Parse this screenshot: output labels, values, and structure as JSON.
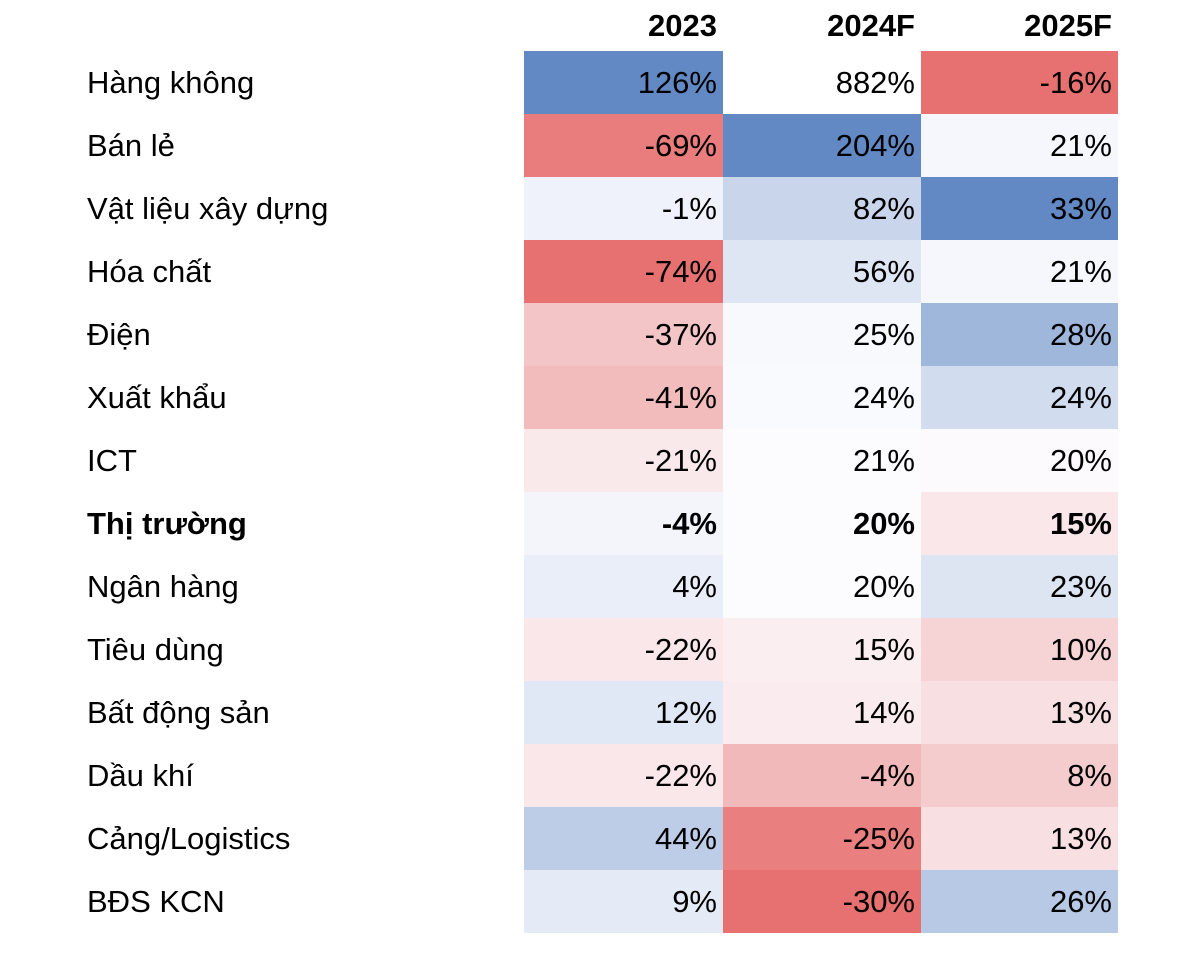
{
  "chart_data": {
    "type": "heatmap",
    "title": "",
    "unit": "%",
    "columns": [
      "2023",
      "2024F",
      "2025F"
    ],
    "rows": [
      "Hàng không",
      "Bán lẻ",
      "Vật liệu xây dựng",
      "Hóa chất",
      "Điện",
      "Xuất khẩu",
      "ICT",
      "Thị trường",
      "Ngân hàng",
      "Tiêu dùng",
      "Bất động sản",
      "Dầu khí",
      "Cảng/Logistics",
      "BĐS KCN"
    ],
    "bold_row_index": 7,
    "values": [
      [
        126,
        882,
        -16
      ],
      [
        -69,
        204,
        21
      ],
      [
        -1,
        82,
        33
      ],
      [
        -74,
        56,
        21
      ],
      [
        -37,
        25,
        28
      ],
      [
        -41,
        24,
        24
      ],
      [
        -21,
        21,
        20
      ],
      [
        -4,
        20,
        15
      ],
      [
        4,
        20,
        23
      ],
      [
        -22,
        15,
        10
      ],
      [
        12,
        14,
        13
      ],
      [
        -22,
        -4,
        8
      ],
      [
        44,
        -25,
        13
      ],
      [
        9,
        -30,
        26
      ]
    ],
    "cell_colors": [
      [
        "#6289C4",
        "#FFFFFF",
        "#E77170"
      ],
      [
        "#E97C7C",
        "#6289C4",
        "#F6F7FD"
      ],
      [
        "#EFF2FA",
        "#C8D5EB",
        "#6289C4"
      ],
      [
        "#E77170",
        "#DEE6F4",
        "#F6F7FD"
      ],
      [
        "#F4C5C6",
        "#F8F9FD",
        "#A0B7DC"
      ],
      [
        "#F2BCBD",
        "#F9FAFD",
        "#D1DCEE"
      ],
      [
        "#F9E9EB",
        "#FCFCFE",
        "#FCFAFC"
      ],
      [
        "#F3F5FB",
        "#FCFCFF",
        "#F9E7E9"
      ],
      [
        "#EAEEF8",
        "#FCFCFF",
        "#DDE5F3"
      ],
      [
        "#F9E7E9",
        "#FAEEF0",
        "#F6D4D6"
      ],
      [
        "#E1E8F5",
        "#FAEBEE",
        "#F8E0E2"
      ],
      [
        "#F9E7E9",
        "#F2B9BA",
        "#F5CCCE"
      ],
      [
        "#BDCDE7",
        "#E97F7E",
        "#F8E0E2"
      ],
      [
        "#E4EAF6",
        "#E77170",
        "#B8C9E5"
      ]
    ],
    "colorscale": {
      "low": "#E77170",
      "mid": "#FCFCFF",
      "high": "#6289C4",
      "legend": "off"
    },
    "layout": {
      "value_alignment": "right",
      "grid": "off"
    }
  }
}
